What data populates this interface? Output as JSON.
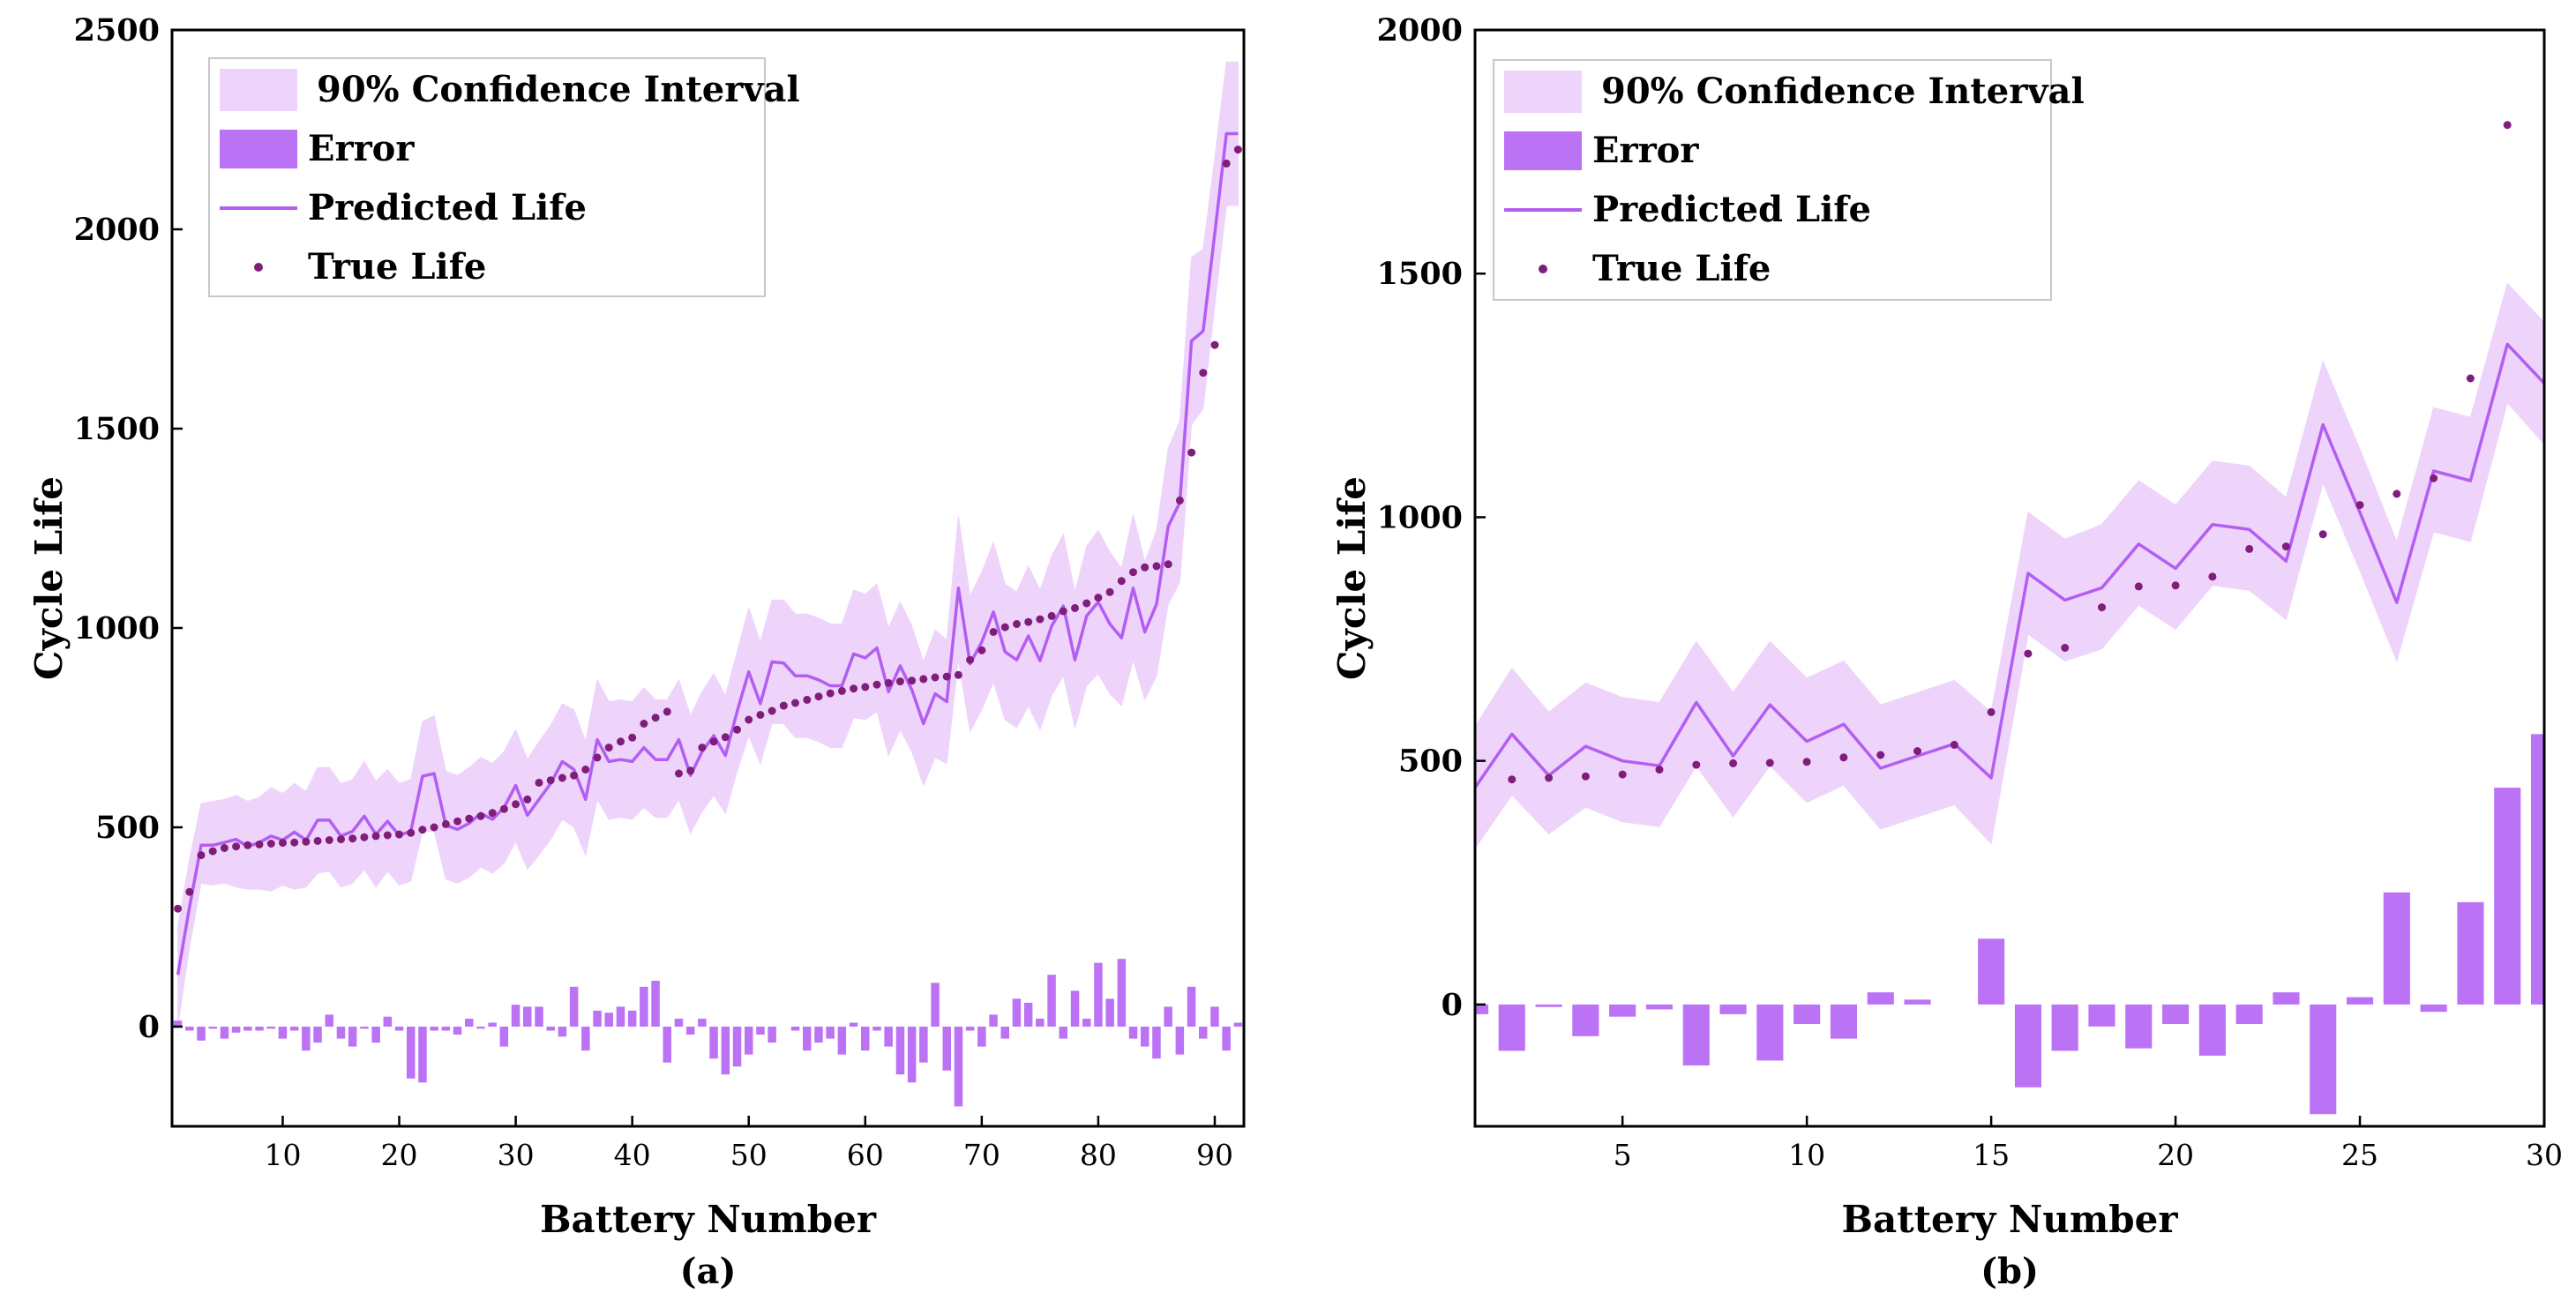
{
  "colors": {
    "band": "#eed4fb",
    "bar": "#bb72f5",
    "line": "#b35ef2",
    "dot": "#7f1e7a",
    "axis": "#000000"
  },
  "legend": {
    "ci": "90% Confidence Interval",
    "error": "Error",
    "predicted": "Predicted Life",
    "true": "True Life"
  },
  "chart_data": [
    {
      "id": "a",
      "type": "line",
      "caption": "(a)",
      "xlabel": "Battery Number",
      "ylabel": "Cycle Life",
      "xlim": [
        0.5,
        92.5
      ],
      "ylim": [
        -250,
        2500
      ],
      "xticks": [
        10,
        20,
        30,
        40,
        50,
        60,
        70,
        80,
        90
      ],
      "yticks": [
        0,
        500,
        1000,
        1500,
        2000,
        2500
      ],
      "legend_position": "top-left",
      "x": [
        1,
        2,
        3,
        4,
        5,
        6,
        7,
        8,
        9,
        10,
        11,
        12,
        13,
        14,
        15,
        16,
        17,
        18,
        19,
        20,
        21,
        22,
        23,
        24,
        25,
        26,
        27,
        28,
        29,
        30,
        31,
        32,
        33,
        34,
        35,
        36,
        37,
        38,
        39,
        40,
        41,
        42,
        43,
        44,
        45,
        46,
        47,
        48,
        49,
        50,
        51,
        52,
        53,
        54,
        55,
        56,
        57,
        58,
        59,
        60,
        61,
        62,
        63,
        64,
        65,
        66,
        67,
        68,
        69,
        70,
        71,
        72,
        73,
        74,
        75,
        76,
        77,
        78,
        79,
        80,
        81,
        82,
        83,
        84,
        85,
        86,
        87,
        88,
        89,
        90,
        91,
        92
      ],
      "series": [
        {
          "name": "True Life",
          "values": [
            296,
            338,
            430,
            440,
            448,
            452,
            455,
            457,
            459,
            461,
            462,
            464,
            466,
            468,
            470,
            472,
            475,
            478,
            480,
            482,
            486,
            494,
            500,
            508,
            515,
            522,
            528,
            536,
            546,
            558,
            570,
            612,
            618,
            624,
            630,
            645,
            675,
            700,
            715,
            725,
            760,
            775,
            790,
            635,
            642,
            700,
            715,
            726,
            745,
            770,
            782,
            792,
            805,
            812,
            820,
            828,
            836,
            842,
            848,
            852,
            858,
            862,
            866,
            868,
            872,
            876,
            878,
            882,
            920,
            944,
            990,
            1002,
            1010,
            1015,
            1022,
            1030,
            1042,
            1050,
            1062,
            1076,
            1090,
            1118,
            1140,
            1152,
            1155,
            1160,
            1320,
            1440,
            1640,
            1710,
            2165,
            2200
          ]
        },
        {
          "name": "Predicted Life",
          "values": [
            130,
            300,
            455,
            455,
            462,
            470,
            452,
            462,
            478,
            468,
            488,
            468,
            518,
            518,
            478,
            490,
            528,
            482,
            515,
            480,
            490,
            628,
            635,
            505,
            495,
            510,
            535,
            520,
            550,
            605,
            530,
            570,
            610,
            665,
            645,
            570,
            720,
            665,
            670,
            665,
            700,
            670,
            670,
            720,
            630,
            690,
            730,
            680,
            790,
            890,
            810,
            915,
            912,
            880,
            880,
            870,
            855,
            855,
            935,
            925,
            950,
            840,
            905,
            845,
            760,
            835,
            815,
            1100,
            910,
            965,
            1040,
            940,
            920,
            980,
            918,
            1005,
            1055,
            920,
            1030,
            1065,
            1010,
            975,
            1100,
            990,
            1060,
            1255,
            1315,
            1720,
            1745,
            1990,
            2240,
            2240
          ]
        },
        {
          "name": "Error",
          "values": [
            15,
            -10,
            -35,
            -5,
            -30,
            -15,
            -10,
            -10,
            -5,
            -30,
            -10,
            -60,
            -40,
            30,
            -30,
            -50,
            -5,
            -40,
            25,
            -10,
            -130,
            -140,
            -10,
            -10,
            -20,
            20,
            -5,
            10,
            -50,
            55,
            50,
            50,
            -10,
            -25,
            100,
            -60,
            40,
            35,
            50,
            40,
            100,
            115,
            -90,
            20,
            -20,
            20,
            -80,
            -120,
            -100,
            -70,
            -20,
            -40,
            0,
            -10,
            -60,
            -40,
            -30,
            -70,
            10,
            -60,
            -10,
            -50,
            -120,
            -140,
            -90,
            110,
            -110,
            -200,
            -10,
            -50,
            30,
            -30,
            70,
            60,
            20,
            130,
            -30,
            90,
            20,
            160,
            70,
            170,
            -30,
            -50,
            -80,
            50,
            -70,
            100,
            -30,
            50,
            -60,
            10
          ]
        },
        {
          "name": "90% Confidence Interval",
          "lower": [
            0,
            200,
            360,
            355,
            360,
            350,
            345,
            345,
            340,
            355,
            345,
            350,
            385,
            390,
            350,
            360,
            395,
            350,
            390,
            355,
            365,
            490,
            490,
            370,
            360,
            375,
            400,
            385,
            410,
            465,
            395,
            430,
            470,
            520,
            500,
            430,
            570,
            520,
            525,
            520,
            550,
            525,
            525,
            570,
            485,
            540,
            580,
            535,
            640,
            730,
            660,
            760,
            760,
            725,
            725,
            715,
            700,
            700,
            775,
            770,
            790,
            680,
            745,
            690,
            605,
            675,
            660,
            920,
            740,
            795,
            865,
            770,
            750,
            805,
            745,
            830,
            880,
            750,
            855,
            885,
            835,
            805,
            920,
            820,
            880,
            1060,
            1115,
            1510,
            1550,
            1810,
            2060,
            2060
          ],
          "upper": [
            250,
            420,
            560,
            565,
            570,
            580,
            565,
            575,
            600,
            585,
            610,
            590,
            650,
            650,
            610,
            620,
            665,
            615,
            645,
            610,
            620,
            765,
            780,
            640,
            630,
            650,
            675,
            660,
            690,
            745,
            670,
            715,
            755,
            810,
            795,
            715,
            870,
            815,
            820,
            815,
            850,
            820,
            820,
            870,
            780,
            840,
            885,
            830,
            940,
            1050,
            965,
            1070,
            1070,
            1035,
            1035,
            1025,
            1010,
            1010,
            1095,
            1085,
            1110,
            1000,
            1065,
            1005,
            915,
            995,
            970,
            1280,
            1080,
            1140,
            1215,
            1110,
            1090,
            1155,
            1095,
            1180,
            1235,
            1090,
            1205,
            1245,
            1190,
            1150,
            1285,
            1165,
            1245,
            1450,
            1520,
            1930,
            1950,
            2180,
            2420,
            2420
          ]
        }
      ]
    },
    {
      "id": "b",
      "type": "line",
      "caption": "(b)",
      "xlabel": "Battery Number",
      "ylabel": "Cycle Life",
      "xlim": [
        1,
        30
      ],
      "ylim": [
        -250,
        2000
      ],
      "xticks": [
        5,
        10,
        15,
        20,
        25,
        30
      ],
      "yticks": [
        0,
        500,
        1000,
        1500,
        2000
      ],
      "legend_position": "top-left",
      "x": [
        1,
        2,
        3,
        4,
        5,
        6,
        7,
        8,
        9,
        10,
        11,
        12,
        13,
        14,
        15,
        16,
        17,
        18,
        19,
        20,
        21,
        22,
        23,
        24,
        25,
        26,
        27,
        28,
        29,
        30
      ],
      "series": [
        {
          "name": "True Life",
          "values": [
            null,
            462,
            465,
            468,
            472,
            482,
            492,
            495,
            496,
            498,
            507,
            512,
            520,
            533,
            600,
            720,
            732,
            815,
            858,
            860,
            878,
            935,
            940,
            965,
            1025,
            1048,
            1080,
            1285,
            1805,
            null
          ]
        },
        {
          "name": "Predicted Life",
          "values": [
            445,
            555,
            470,
            530,
            500,
            490,
            620,
            510,
            615,
            540,
            575,
            485,
            510,
            535,
            465,
            885,
            830,
            855,
            945,
            895,
            985,
            975,
            910,
            1190,
            1010,
            825,
            1095,
            1075,
            1355,
            1275
          ]
        },
        {
          "name": "Error",
          "values": [
            -20,
            -95,
            -5,
            -65,
            -25,
            -10,
            -125,
            -20,
            -115,
            -40,
            -70,
            25,
            10,
            0,
            135,
            -170,
            -95,
            -45,
            -90,
            -40,
            -105,
            -40,
            25,
            -225,
            15,
            230,
            -15,
            210,
            445,
            555
          ]
        },
        {
          "name": "90% Confidence Interval",
          "lower": [
            320,
            430,
            350,
            405,
            375,
            365,
            490,
            385,
            490,
            415,
            450,
            360,
            385,
            410,
            330,
            760,
            705,
            730,
            820,
            770,
            860,
            850,
            790,
            1070,
            890,
            705,
            970,
            950,
            1235,
            1150
          ],
          "upper": [
            570,
            690,
            600,
            660,
            630,
            620,
            745,
            640,
            745,
            670,
            705,
            615,
            640,
            665,
            600,
            1010,
            955,
            985,
            1075,
            1025,
            1115,
            1105,
            1040,
            1320,
            1140,
            950,
            1225,
            1205,
            1480,
            1400
          ]
        }
      ]
    }
  ]
}
